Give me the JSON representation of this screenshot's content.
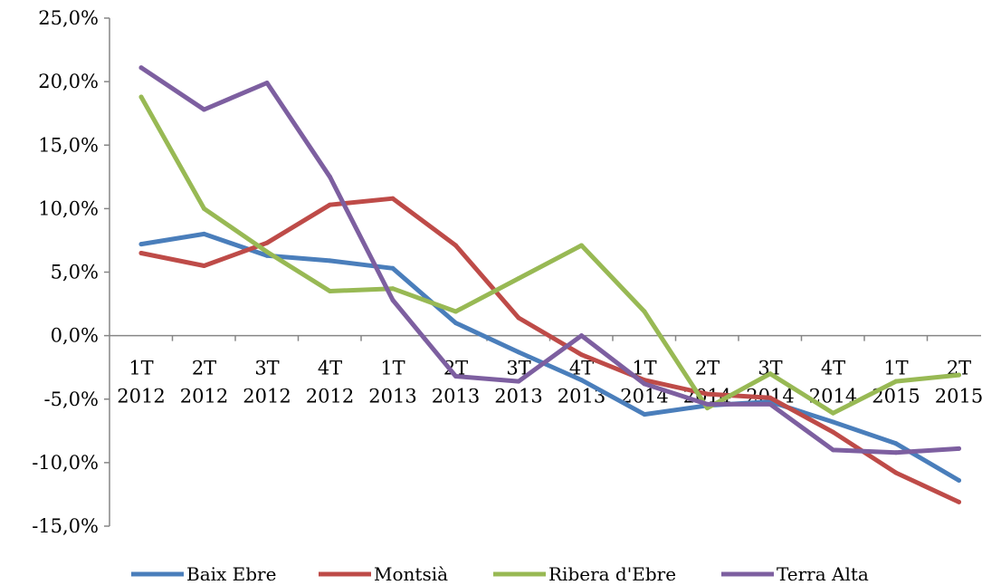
{
  "chart_data": {
    "type": "line",
    "categories": [
      [
        "1T",
        "2012"
      ],
      [
        "2T",
        "2012"
      ],
      [
        "3T",
        "2012"
      ],
      [
        "4T",
        "2012"
      ],
      [
        "1T",
        "2013"
      ],
      [
        "2T",
        "2013"
      ],
      [
        "3T",
        "2013"
      ],
      [
        "4T",
        "2013"
      ],
      [
        "1T",
        "2014"
      ],
      [
        "2T",
        "2014"
      ],
      [
        "3T",
        "2014"
      ],
      [
        "4T",
        "2014"
      ],
      [
        "1T",
        "2015"
      ],
      [
        "2T",
        "2015"
      ]
    ],
    "ylim": [
      -15,
      25
    ],
    "yticks": [
      25,
      20,
      15,
      10,
      5,
      0,
      -5,
      -10,
      -15
    ],
    "ytick_labels": [
      "25,0%",
      "20,0%",
      "15,0%",
      "10,0%",
      "5,0%",
      "0,0%",
      "-5,0%",
      "-10,0%",
      "-15,0%"
    ],
    "grid": false,
    "legend_position": "bottom",
    "series": [
      {
        "name": "Baix Ebre",
        "color": "#4a7ebb",
        "values": [
          7.2,
          8.0,
          6.3,
          5.9,
          5.3,
          1.0,
          -1.3,
          -3.5,
          -6.2,
          -5.5,
          -5.2,
          -6.8,
          -8.5,
          -11.4
        ]
      },
      {
        "name": "Montsià",
        "color": "#be4b48",
        "values": [
          6.5,
          5.5,
          7.3,
          10.3,
          10.8,
          7.1,
          1.4,
          -1.5,
          -3.5,
          -4.6,
          -4.9,
          -7.6,
          -10.8,
          -13.1
        ]
      },
      {
        "name": "Ribera d'Ebre",
        "color": "#98b954",
        "values": [
          18.8,
          10.0,
          6.6,
          3.5,
          3.7,
          1.9,
          4.5,
          7.1,
          1.9,
          -5.7,
          -3.0,
          -6.1,
          -3.6,
          -3.1
        ]
      },
      {
        "name": "Terra Alta",
        "color": "#7d5fa0",
        "values": [
          21.1,
          17.8,
          19.9,
          12.5,
          2.8,
          -3.2,
          -3.6,
          0.0,
          -3.8,
          -5.4,
          -5.4,
          -9.0,
          -9.2,
          -8.9
        ]
      }
    ]
  }
}
